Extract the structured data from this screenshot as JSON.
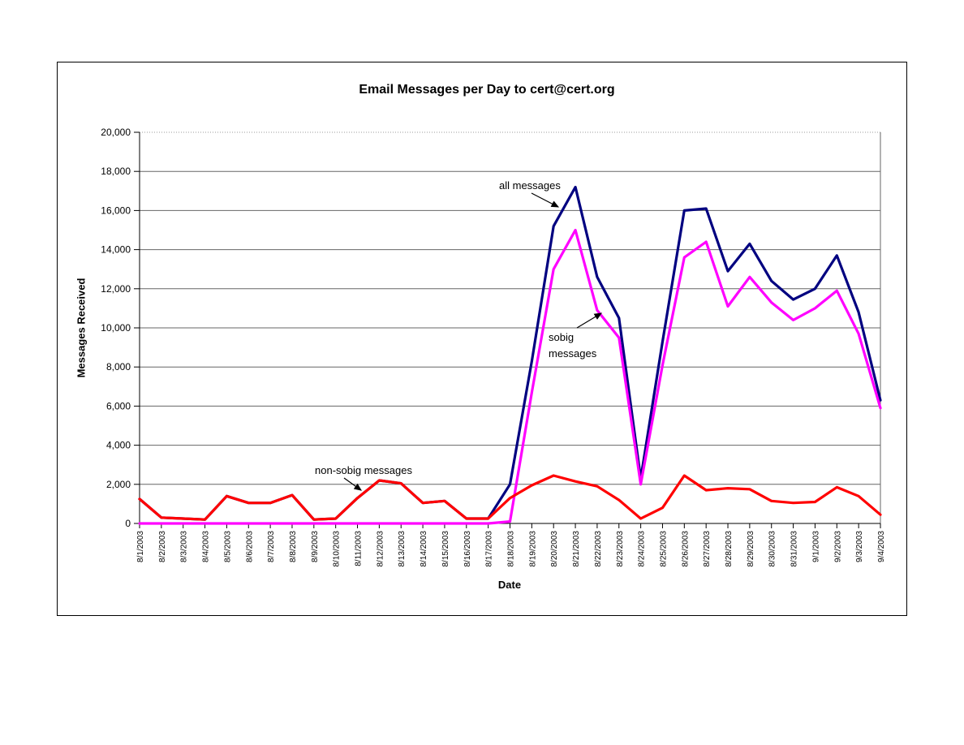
{
  "chart": {
    "annotations": {
      "all_messages": "all messages",
      "sobig_line1": "sobig",
      "sobig_line2": "messages",
      "non_sobig": "non-sobig messages"
    }
  },
  "chart_data": {
    "type": "line",
    "title": "Email Messages per Day to cert@cert.org",
    "xlabel": "Date",
    "ylabel": "Messages Received",
    "ylim": [
      0,
      20000
    ],
    "y_tick_step": 2000,
    "y_tick_labels": [
      "0",
      "2,000",
      "4,000",
      "6,000",
      "8,000",
      "10,000",
      "12,000",
      "14,000",
      "16,000",
      "18,000",
      "20,000"
    ],
    "grid": true,
    "legend_position": "none (series identified by in-chart text annotations with arrows)",
    "categories": [
      "8/1/2003",
      "8/2/2003",
      "8/3/2003",
      "8/4/2003",
      "8/5/2003",
      "8/6/2003",
      "8/7/2003",
      "8/8/2003",
      "8/9/2003",
      "8/10/2003",
      "8/11/2003",
      "8/12/2003",
      "8/13/2003",
      "8/14/2003",
      "8/15/2003",
      "8/16/2003",
      "8/17/2003",
      "8/18/2003",
      "8/19/2003",
      "8/20/2003",
      "8/21/2003",
      "8/22/2003",
      "8/23/2003",
      "8/24/2003",
      "8/25/2003",
      "8/26/2003",
      "8/27/2003",
      "8/28/2003",
      "8/29/2003",
      "8/30/2003",
      "8/31/2003",
      "9/1/2003",
      "9/2/2003",
      "9/3/2003",
      "9/4/2003"
    ],
    "series": [
      {
        "name": "all messages",
        "color": "#000080",
        "values": [
          1250,
          300,
          250,
          200,
          1400,
          1050,
          1050,
          1450,
          200,
          250,
          1300,
          2200,
          2050,
          1050,
          1150,
          250,
          250,
          2000,
          8300,
          15200,
          17200,
          12600,
          10500,
          2300,
          9300,
          16000,
          16100,
          12900,
          14300,
          12400,
          11450,
          12000,
          13700,
          10800,
          6300
        ]
      },
      {
        "name": "sobig messages",
        "color": "#ff00ff",
        "values": [
          0,
          0,
          0,
          0,
          0,
          0,
          0,
          0,
          0,
          0,
          0,
          0,
          0,
          0,
          0,
          0,
          0,
          100,
          6700,
          13000,
          15000,
          10900,
          9500,
          2000,
          8100,
          13600,
          14400,
          11100,
          12600,
          11300,
          10400,
          11000,
          11900,
          9700,
          5900
        ]
      },
      {
        "name": "non-sobig messages",
        "color": "#ff0000",
        "values": [
          1250,
          300,
          250,
          200,
          1400,
          1050,
          1050,
          1450,
          200,
          250,
          1300,
          2200,
          2050,
          1050,
          1150,
          250,
          250,
          1300,
          1950,
          2450,
          2150,
          1900,
          1200,
          250,
          800,
          2450,
          1700,
          1800,
          1750,
          1150,
          1050,
          1100,
          1850,
          1400,
          450
        ]
      }
    ],
    "colors": {
      "gridline": "#666666",
      "top_border_dotted": "#999999",
      "axis": "#000000",
      "background": "#ffffff"
    }
  }
}
